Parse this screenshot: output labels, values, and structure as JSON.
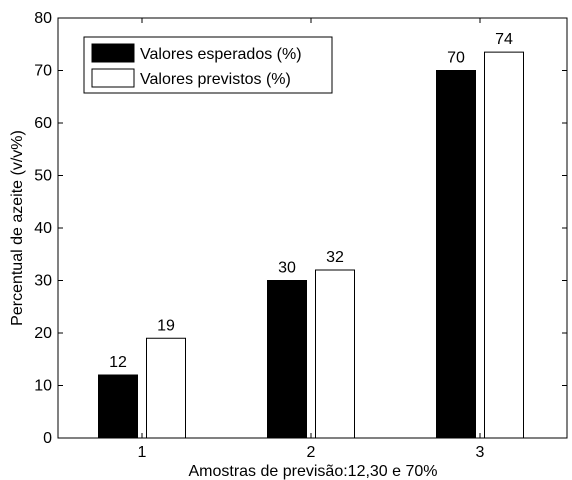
{
  "chart_data": {
    "type": "bar",
    "title": "",
    "xlabel": "Amostras de previsão:12,30 e 70%",
    "ylabel": "Percentual de azeite (v/v%)",
    "categories": [
      "1",
      "2",
      "3"
    ],
    "ylim": [
      0,
      80
    ],
    "yticks": [
      0,
      10,
      20,
      30,
      40,
      50,
      60,
      70,
      80
    ],
    "grid": false,
    "legend_position": "top-left",
    "series": [
      {
        "name": "Valores esperados (%)",
        "values": [
          12,
          30,
          70
        ],
        "labels": [
          "12",
          "30",
          "70"
        ],
        "fill": "#000000"
      },
      {
        "name": "Valores previstos (%)",
        "values": [
          19,
          32,
          73.5
        ],
        "labels": [
          "19",
          "32",
          "74"
        ],
        "fill": "#ffffff"
      }
    ]
  }
}
